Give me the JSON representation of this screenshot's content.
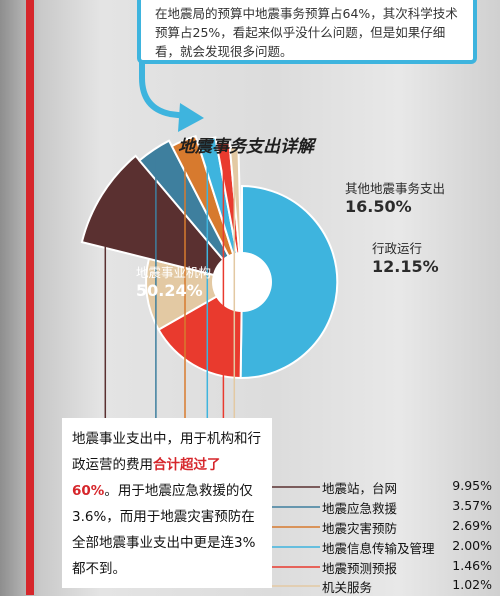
{
  "intro_text": "在地震局的预算中地震事务预算占64%，其次科学技术预算占25%，看起来似乎没什么问题，但是如果仔细看，就会发现很多问题。",
  "note": {
    "part1": "地震事业支出中，用于机构和行政运营的费用",
    "highlight": "合计超过了60%",
    "part2": "。用于地震应急救援的仅3.6%，而用于地震灾害预防在全部地震事业支出中更是连3%都不到。"
  },
  "chart_data": {
    "type": "pie",
    "title": "地震事务支出详解",
    "slices": [
      {
        "label": "地震事业机构",
        "value": 50.24,
        "value_text": "50.24%",
        "color": "#3eb4de"
      },
      {
        "label": "其他地震事务支出",
        "value": 16.5,
        "value_text": "16.50%",
        "color": "#e93a2e"
      },
      {
        "label": "行政运行",
        "value": 12.15,
        "value_text": "12.15%",
        "color": "#e3c9a3"
      },
      {
        "label": "地震站，台网",
        "value": 9.95,
        "value_text": "9.95%",
        "color": "#5a3030"
      },
      {
        "label": "地震应急救援",
        "value": 3.57,
        "value_text": "3.57%",
        "color": "#3e7f9e"
      },
      {
        "label": "地震灾害预防",
        "value": 2.69,
        "value_text": "2.69%",
        "color": "#d77a2e"
      },
      {
        "label": "地震信息传输及管理",
        "value": 2.0,
        "value_text": "2.00%",
        "color": "#3eb4de"
      },
      {
        "label": "地震预测预报",
        "value": 1.46,
        "value_text": "1.46%",
        "color": "#e93a2e"
      },
      {
        "label": "机关服务",
        "value": 1.02,
        "value_text": "1.02%",
        "color": "#e3c9a3"
      }
    ]
  }
}
